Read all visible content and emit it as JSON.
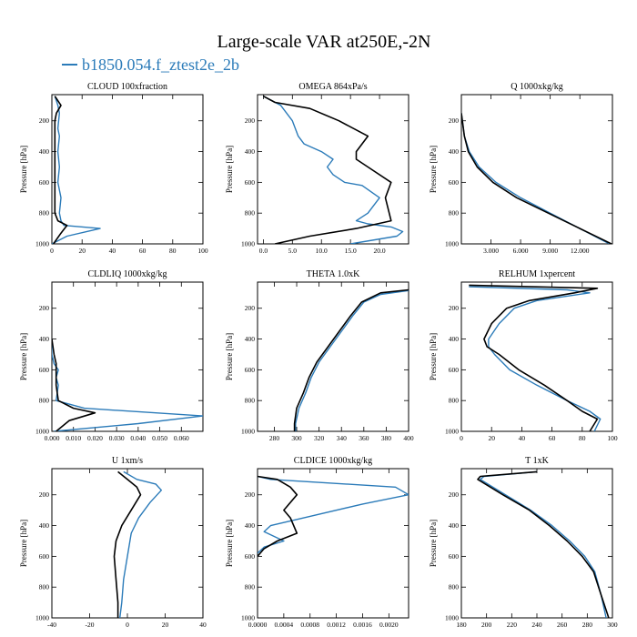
{
  "title": "Large-scale VAR at250E,-2N",
  "legend": {
    "label": "b1850.054.f_ztest2e_2b",
    "color": "#2b7bb9"
  },
  "series_colors": {
    "model": "#2b7bb9",
    "reference": "#000000"
  },
  "chart_data": [
    {
      "type": "line",
      "title": "CLOUD  100xfraction",
      "ylabel": "Pressure [hPa]",
      "xlim": [
        0,
        100
      ],
      "ylim": [
        1000,
        30
      ],
      "y_inverted": true,
      "xticks": [
        0,
        20,
        40,
        60,
        80,
        100
      ],
      "xtick_labels": [
        "0",
        "20",
        "40",
        "60",
        "80",
        "100"
      ],
      "yticks": [
        200,
        400,
        600,
        800,
        1000
      ],
      "series": [
        {
          "color": "#2b7bb9",
          "x": [
            2,
            4,
            5,
            4,
            5,
            4,
            5,
            4,
            6,
            5,
            6,
            8,
            32,
            10,
            0
          ],
          "y": [
            40,
            100,
            150,
            250,
            300,
            400,
            500,
            600,
            700,
            800,
            850,
            880,
            900,
            950,
            1000
          ]
        },
        {
          "color": "#000000",
          "x": [
            2,
            6,
            3,
            2,
            2,
            2,
            2,
            2,
            2,
            2,
            4,
            10,
            6,
            1
          ],
          "y": [
            40,
            100,
            150,
            200,
            300,
            400,
            500,
            600,
            700,
            800,
            850,
            880,
            930,
            1000
          ]
        }
      ]
    },
    {
      "type": "line",
      "title": "OMEGA  864xPa/s",
      "ylabel": "Pressure [hPa]",
      "xlim": [
        -1,
        25
      ],
      "ylim": [
        1000,
        30
      ],
      "y_inverted": true,
      "xticks": [
        0,
        5,
        10,
        15,
        20
      ],
      "xtick_labels": [
        "0.0",
        "5.0",
        "10.0",
        "15.0",
        "20.0"
      ],
      "yticks": [
        200,
        400,
        600,
        800,
        1000
      ],
      "series": [
        {
          "color": "#2b7bb9",
          "x": [
            0,
            1,
            3,
            5,
            6,
            7,
            10,
            12,
            11,
            12,
            14,
            17,
            20,
            18,
            16,
            18,
            22,
            24,
            23,
            15
          ],
          "y": [
            40,
            60,
            100,
            200,
            300,
            350,
            400,
            450,
            500,
            550,
            600,
            620,
            700,
            800,
            850,
            870,
            890,
            920,
            950,
            1000
          ]
        },
        {
          "color": "#000000",
          "x": [
            0,
            2,
            8,
            13,
            18,
            16,
            16,
            18,
            22,
            21,
            22,
            16,
            8,
            2
          ],
          "y": [
            40,
            80,
            120,
            200,
            300,
            400,
            450,
            500,
            600,
            700,
            850,
            900,
            950,
            1000
          ]
        }
      ]
    },
    {
      "type": "line",
      "title": "Q  1000xkg/kg",
      "ylabel": "Pressure [hPa]",
      "xlim": [
        0,
        15.3
      ],
      "ylim": [
        1000,
        30
      ],
      "y_inverted": true,
      "xticks": [
        3,
        6,
        9,
        12
      ],
      "xtick_labels": [
        "3.000",
        "6.000",
        "9.000",
        "12.000"
      ],
      "yticks": [
        200,
        400,
        600,
        800,
        1000
      ],
      "series": [
        {
          "color": "#2b7bb9",
          "x": [
            0,
            0.1,
            0.3,
            0.8,
            1.8,
            3.5,
            6,
            9,
            12,
            15
          ],
          "y": [
            150,
            200,
            300,
            400,
            500,
            600,
            700,
            800,
            900,
            1000
          ]
        },
        {
          "color": "#000000",
          "x": [
            0,
            0.1,
            0.3,
            0.7,
            1.6,
            3.2,
            5.6,
            8.8,
            12,
            15.2
          ],
          "y": [
            150,
            200,
            300,
            400,
            500,
            600,
            700,
            800,
            900,
            1000
          ]
        }
      ]
    },
    {
      "type": "line",
      "title": "CLDLIQ  1000xkg/kg",
      "ylabel": "Pressure [hPa]",
      "xlim": [
        0,
        0.07
      ],
      "ylim": [
        1000,
        30
      ],
      "y_inverted": true,
      "xticks": [
        0,
        0.01,
        0.02,
        0.03,
        0.04,
        0.05,
        0.06
      ],
      "xtick_labels": [
        "0.000",
        "0.010",
        "0.020",
        "0.030",
        "0.040",
        "0.050",
        "0.060"
      ],
      "yticks": [
        200,
        400,
        600,
        800,
        1000
      ],
      "series": [
        {
          "color": "#2b7bb9",
          "x": [
            0,
            0,
            0.001,
            0.003,
            0.002,
            0.003,
            0.002,
            0.015,
            0.07,
            0.04,
            0.001
          ],
          "y": [
            400,
            500,
            560,
            600,
            650,
            700,
            800,
            850,
            900,
            950,
            1000
          ]
        },
        {
          "color": "#000000",
          "x": [
            0,
            0.001,
            0.002,
            0.002,
            0.002,
            0.003,
            0.01,
            0.02,
            0.008,
            0.002
          ],
          "y": [
            400,
            500,
            560,
            600,
            700,
            800,
            850,
            880,
            930,
            1000
          ]
        }
      ]
    },
    {
      "type": "line",
      "title": "THETA  1.0xK",
      "ylabel": "Pressure [hPa]",
      "xlim": [
        265,
        400
      ],
      "ylim": [
        1000,
        30
      ],
      "y_inverted": true,
      "xticks": [
        280,
        300,
        320,
        340,
        360,
        380,
        400
      ],
      "xtick_labels": [
        "280",
        "300",
        "320",
        "340",
        "360",
        "380",
        "400"
      ],
      "yticks": [
        200,
        400,
        600,
        800,
        1000
      ],
      "series": [
        {
          "color": "#2b7bb9",
          "x": [
            400,
            375,
            360,
            350,
            340,
            330,
            320,
            313,
            308,
            302,
            299,
            299
          ],
          "y": [
            85,
            110,
            160,
            250,
            350,
            450,
            550,
            650,
            750,
            850,
            950,
            1000
          ]
        },
        {
          "color": "#000000",
          "x": [
            400,
            375,
            358,
            348,
            338,
            328,
            318,
            311,
            306,
            300,
            298,
            298
          ],
          "y": [
            80,
            100,
            160,
            250,
            350,
            450,
            550,
            650,
            750,
            850,
            950,
            1000
          ]
        }
      ]
    },
    {
      "type": "line",
      "title": "RELHUM  1xpercent",
      "ylabel": "Pressure [hPa]",
      "xlim": [
        0,
        100
      ],
      "ylim": [
        1000,
        30
      ],
      "y_inverted": true,
      "xticks": [
        0,
        20,
        40,
        60,
        80,
        100
      ],
      "xtick_labels": [
        "0",
        "20",
        "40",
        "60",
        "80",
        "100"
      ],
      "yticks": [
        200,
        400,
        600,
        800,
        1000
      ],
      "series": [
        {
          "color": "#2b7bb9",
          "x": [
            5,
            70,
            85,
            50,
            35,
            25,
            18,
            18,
            22,
            32,
            50,
            70,
            85,
            92,
            88
          ],
          "y": [
            60,
            80,
            100,
            150,
            200,
            300,
            400,
            450,
            500,
            600,
            700,
            800,
            870,
            920,
            1000
          ]
        },
        {
          "color": "#000000",
          "x": [
            5,
            90,
            75,
            45,
            30,
            20,
            15,
            17,
            25,
            38,
            55,
            70,
            80,
            90,
            85
          ],
          "y": [
            50,
            70,
            100,
            150,
            200,
            300,
            400,
            450,
            500,
            600,
            700,
            800,
            870,
            920,
            1000
          ]
        }
      ]
    },
    {
      "type": "line",
      "title": "U  1xm/s",
      "ylabel": "Pressure [hPa]",
      "xlim": [
        -40,
        40
      ],
      "ylim": [
        1000,
        30
      ],
      "y_inverted": true,
      "xticks": [
        -40,
        -20,
        0,
        20,
        40
      ],
      "xtick_labels": [
        "-40",
        "-20",
        "0",
        "20",
        "40"
      ],
      "yticks": [
        200,
        400,
        600,
        800,
        1000
      ],
      "series": [
        {
          "color": "#2b7bb9",
          "x": [
            -2,
            5,
            15,
            18,
            12,
            6,
            2,
            0,
            -2,
            -3,
            -4
          ],
          "y": [
            50,
            100,
            130,
            170,
            250,
            350,
            450,
            600,
            750,
            900,
            1000
          ]
        },
        {
          "color": "#000000",
          "x": [
            -5,
            0,
            5,
            7,
            2,
            -3,
            -6,
            -7,
            -6,
            -5,
            -5
          ],
          "y": [
            50,
            100,
            150,
            200,
            300,
            400,
            500,
            600,
            750,
            900,
            1000
          ]
        }
      ]
    },
    {
      "type": "line",
      "title": "CLDICE  1000xkg/kg",
      "ylabel": "Pressure [hPa]",
      "xlim": [
        0,
        0.0023
      ],
      "ylim": [
        1000,
        30
      ],
      "y_inverted": true,
      "xticks": [
        0,
        0.0004,
        0.0008,
        0.0012,
        0.0016,
        0.002
      ],
      "xtick_labels": [
        "0.0000",
        "0.0004",
        "0.0008",
        "0.0012",
        "0.0016",
        "0.0020"
      ],
      "yticks": [
        200,
        400,
        600,
        800,
        1000
      ],
      "series": [
        {
          "color": "#2b7bb9",
          "x": [
            0,
            0.0002,
            0.0021,
            0.0023,
            0.0016,
            0.0008,
            0.0002,
            0.0001,
            0.0004,
            0.0001,
            0
          ],
          "y": [
            80,
            100,
            150,
            200,
            260,
            340,
            400,
            440,
            500,
            540,
            580
          ]
        },
        {
          "color": "#000000",
          "x": [
            0,
            0.0003,
            0.0005,
            0.0006,
            0.0004,
            0.0005,
            0.0006,
            0.0003,
            0.0001,
            0
          ],
          "y": [
            80,
            100,
            150,
            200,
            300,
            350,
            450,
            500,
            550,
            600
          ]
        }
      ]
    },
    {
      "type": "line",
      "title": "T  1xK",
      "ylabel": "Pressure [hPa]",
      "xlim": [
        180,
        300
      ],
      "ylim": [
        1000,
        30
      ],
      "y_inverted": true,
      "xticks": [
        180,
        200,
        220,
        240,
        260,
        280,
        300
      ],
      "xtick_labels": [
        "180",
        "200",
        "220",
        "240",
        "260",
        "280",
        "300"
      ],
      "yticks": [
        200,
        400,
        600,
        800,
        1000
      ],
      "series": [
        {
          "color": "#2b7bb9",
          "x": [
            240,
            198,
            195,
            215,
            235,
            252,
            266,
            278,
            286,
            291,
            295
          ],
          "y": [
            50,
            80,
            100,
            200,
            300,
            400,
            500,
            600,
            700,
            850,
            1000
          ]
        },
        {
          "color": "#000000",
          "x": [
            240,
            195,
            193,
            213,
            234,
            250,
            264,
            276,
            285,
            291,
            297
          ],
          "y": [
            50,
            80,
            100,
            200,
            300,
            400,
            500,
            600,
            700,
            850,
            1000
          ]
        }
      ]
    }
  ]
}
